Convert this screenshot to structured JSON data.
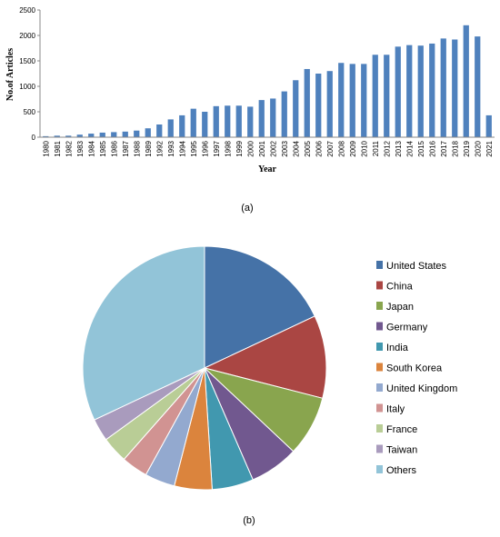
{
  "chart_data": [
    {
      "type": "bar",
      "panel_label": "(a)",
      "xlabel": "Year",
      "ylabel": "No.of Articles",
      "ylim": [
        0,
        2500
      ],
      "yticks": [
        "0",
        "500",
        "1000",
        "1500",
        "2000",
        "2500"
      ],
      "color": "#4f81bd",
      "categories": [
        "1980",
        "1981",
        "1982",
        "1983",
        "1984",
        "1985",
        "1986",
        "1987",
        "1988",
        "1989",
        "1992",
        "1993",
        "1994",
        "1995",
        "1996",
        "1997",
        "1998",
        "1999",
        "2000",
        "2001",
        "2002",
        "2003",
        "2004",
        "2005",
        "2006",
        "2007",
        "2008",
        "2009",
        "2010",
        "2011",
        "2012",
        "2013",
        "2014",
        "2015",
        "2016",
        "2017",
        "2018",
        "2019",
        "2020",
        "2021"
      ],
      "values": [
        20,
        30,
        30,
        50,
        70,
        90,
        100,
        110,
        130,
        175,
        250,
        350,
        430,
        560,
        500,
        610,
        620,
        620,
        600,
        730,
        760,
        900,
        1120,
        1340,
        1250,
        1300,
        1460,
        1440,
        1440,
        1620,
        1620,
        1780,
        1810,
        1800,
        1840,
        1940,
        1920,
        2200,
        1980,
        430
      ]
    },
    {
      "type": "pie",
      "panel_label": "(b)",
      "legend_position": "right",
      "slices": [
        {
          "name": "United States",
          "value": 18.0,
          "color": "#4572a7"
        },
        {
          "name": "China",
          "value": 11.0,
          "color": "#aa4643"
        },
        {
          "name": "Japan",
          "value": 8.0,
          "color": "#89a54e"
        },
        {
          "name": "Germany",
          "value": 6.5,
          "color": "#71588f"
        },
        {
          "name": "India",
          "value": 5.5,
          "color": "#4198af"
        },
        {
          "name": "South Korea",
          "value": 5.0,
          "color": "#db843d"
        },
        {
          "name": "United Kingdom",
          "value": 4.0,
          "color": "#93a9cf"
        },
        {
          "name": "Italy",
          "value": 3.5,
          "color": "#d19392"
        },
        {
          "name": "France",
          "value": 3.5,
          "color": "#b9cd96"
        },
        {
          "name": "Taiwan",
          "value": 3.0,
          "color": "#a99bbd"
        },
        {
          "name": "Others",
          "value": 32.0,
          "color": "#92c4d8"
        }
      ]
    }
  ]
}
